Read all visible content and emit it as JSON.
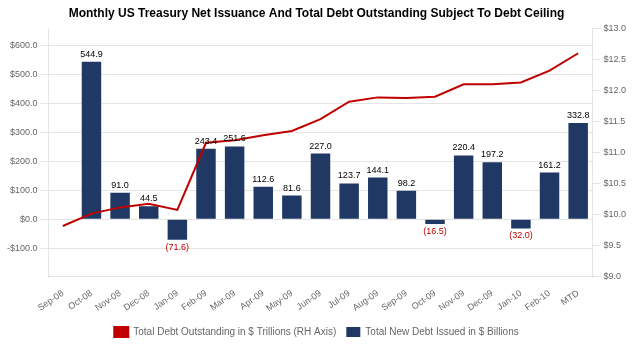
{
  "chart_data": {
    "type": "bar",
    "title": "Monthly US Treasury Net Issuance And Total Debt Outstanding Subject To Debt Ceiling",
    "categories": [
      "Sep-08",
      "Oct-08",
      "Nov-08",
      "Dec-08",
      "Jan-09",
      "Feb-09",
      "Mar-09",
      "Apr-09",
      "May-09",
      "Jun-09",
      "Jul-09",
      "Aug-09",
      "Sep-09",
      "Oct-09",
      "Nov-09",
      "Dec-09",
      "Jan-10",
      "Feb-10",
      "MTD"
    ],
    "series": [
      {
        "name": "Total New Debt Issued in $ Billions",
        "type": "bar",
        "color": "#1F3864",
        "values": [
          0,
          544.9,
          91.0,
          44.5,
          -71.6,
          243.4,
          251.6,
          112.6,
          81.6,
          227.0,
          123.7,
          144.1,
          98.2,
          -16.5,
          220.4,
          197.2,
          -32.0,
          161.2,
          332.8
        ],
        "value_labels": [
          null,
          "544.9",
          "91.0",
          "44.5",
          "(71.6)",
          "243.4",
          "251.6",
          "112.6",
          "81.6",
          "227.0",
          "123.7",
          "144.1",
          "98.2",
          "(16.5)",
          "220.4",
          "197.2",
          "(32.0)",
          "161.2",
          "332.8"
        ]
      },
      {
        "name": "Total Debt Outstanding in $ Trillions (RH Axis)",
        "type": "line",
        "color": "#C00000",
        "axis": "y2",
        "values": [
          9.82,
          10.02,
          10.12,
          10.18,
          10.08,
          11.16,
          11.2,
          11.28,
          11.35,
          11.54,
          11.82,
          11.89,
          11.88,
          11.9,
          12.1,
          12.1,
          12.13,
          12.32,
          12.6
        ]
      }
    ],
    "ylim": [
      -200,
      660
    ],
    "yticks": [
      {
        "value": -100,
        "label": "-$100.0"
      },
      {
        "value": 0,
        "label": "$0.0"
      },
      {
        "value": 100,
        "label": "$100.0"
      },
      {
        "value": 200,
        "label": "$200.0"
      },
      {
        "value": 300,
        "label": "$300.0"
      },
      {
        "value": 400,
        "label": "$400.0"
      },
      {
        "value": 500,
        "label": "$500.0"
      },
      {
        "value": 600,
        "label": "$600.0"
      }
    ],
    "y2lim": [
      9.0,
      13.0
    ],
    "y2ticks": [
      {
        "value": 9.0,
        "label": "$9.0"
      },
      {
        "value": 9.5,
        "label": "$9.5"
      },
      {
        "value": 10.0,
        "label": "$10.0"
      },
      {
        "value": 10.5,
        "label": "$10.5"
      },
      {
        "value": 11.0,
        "label": "$11.0"
      },
      {
        "value": 11.5,
        "label": "$11.5"
      },
      {
        "value": 12.0,
        "label": "$12.0"
      },
      {
        "value": 12.5,
        "label": "$12.5"
      },
      {
        "value": 13.0,
        "label": "$13.0"
      }
    ],
    "grid": true,
    "legend": "bottom",
    "data_labels": true
  }
}
